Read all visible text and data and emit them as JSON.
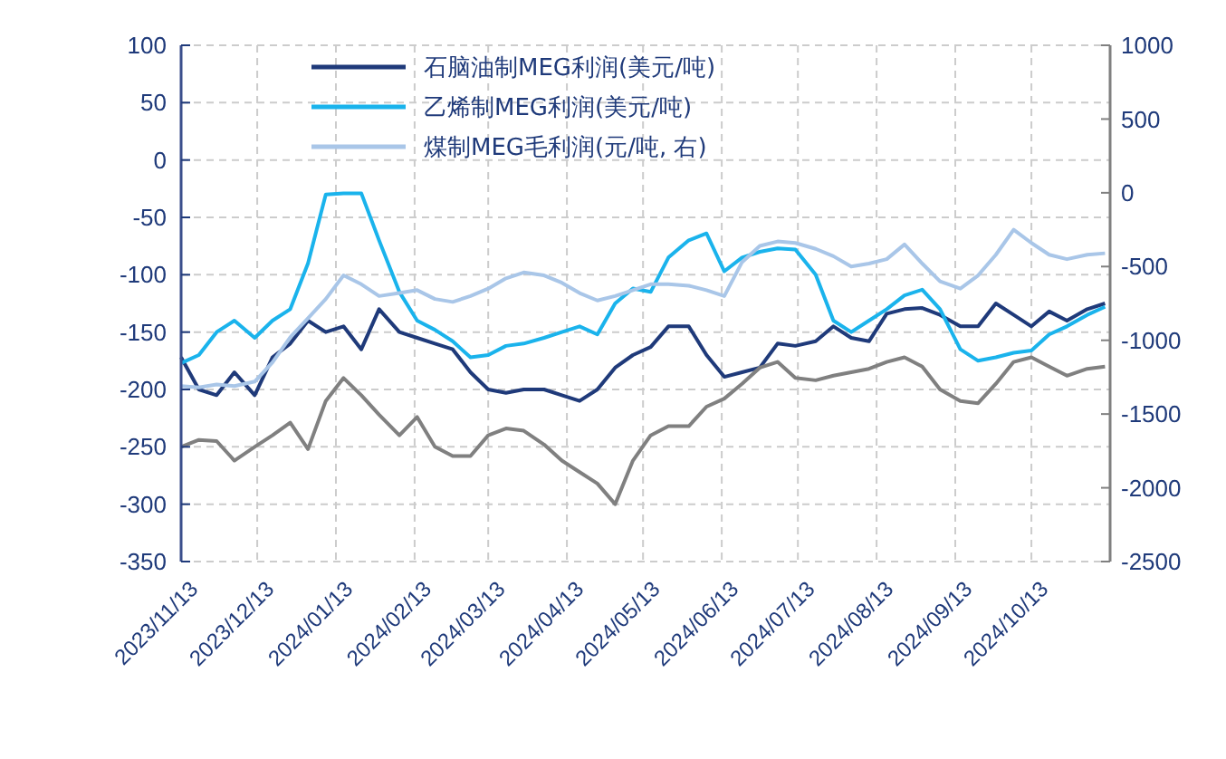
{
  "chart_data": {
    "type": "line",
    "x": [
      "2023-11-13",
      "2023-11-20",
      "2023-11-27",
      "2023-12-04",
      "2023-12-12",
      "2023-12-19",
      "2023-12-26",
      "2024-01-02",
      "2024-01-09",
      "2024-01-16",
      "2024-01-23",
      "2024-01-30",
      "2024-02-07",
      "2024-02-14",
      "2024-02-21",
      "2024-02-28",
      "2024-03-06",
      "2024-03-13",
      "2024-03-20",
      "2024-03-27",
      "2024-04-04",
      "2024-04-11",
      "2024-04-18",
      "2024-04-25",
      "2024-05-02",
      "2024-05-09",
      "2024-05-16",
      "2024-05-23",
      "2024-05-31",
      "2024-06-07",
      "2024-06-14",
      "2024-06-21",
      "2024-06-28",
      "2024-07-05",
      "2024-07-12",
      "2024-07-20",
      "2024-07-27",
      "2024-08-03",
      "2024-08-10",
      "2024-08-17",
      "2024-08-24",
      "2024-08-31",
      "2024-09-07",
      "2024-09-15",
      "2024-09-22",
      "2024-09-29",
      "2024-10-06",
      "2024-10-13",
      "2024-10-20",
      "2024-10-27",
      "2024-11-04",
      "2024-11-11"
    ],
    "series": [
      {
        "name": "石脑油制MEG利润(美元/吨)",
        "color": "#1f3a7a",
        "values": [
          -172,
          -200,
          -205,
          -185,
          -205,
          -172,
          -160,
          -140,
          -150,
          -145,
          -165,
          -130,
          -150,
          -155,
          -160,
          -165,
          -185,
          -200,
          -203,
          -200,
          -200,
          -205,
          -210,
          -200,
          -181,
          -170,
          -163,
          -145,
          -145,
          -170,
          -189,
          -185,
          -181,
          -160,
          -162,
          -158,
          -145,
          -155,
          -158,
          -134,
          -130,
          -129,
          -135,
          -145,
          -145,
          -125,
          -135,
          -145,
          -132,
          -140,
          -130,
          -125
        ]
      },
      {
        "name": "乙烯制MEG利润(美元/吨)",
        "color": "#1ab3ec",
        "values": [
          -177,
          -170,
          -150,
          -140,
          -155,
          -140,
          -130,
          -90,
          -30,
          -29,
          -29,
          -70,
          -115,
          -140,
          -148,
          -158,
          -172,
          -170,
          -162,
          -160,
          -155,
          -150,
          -145,
          -152,
          -125,
          -112,
          -115,
          -85,
          -70,
          -64,
          -97,
          -85,
          -80,
          -77,
          -78,
          -100,
          -140,
          -150,
          -140,
          -130,
          -118,
          -113,
          -130,
          -165,
          -175,
          -172,
          -168,
          -166,
          -152,
          -145,
          -135,
          -128
        ]
      },
      {
        "name": "煤制MEG毛利润(元/吨, 右)",
        "color": "#a9c6e8",
        "axis": "y2",
        "values": [
          -1310,
          -1320,
          -1300,
          -1310,
          -1280,
          -1150,
          -980,
          -850,
          -720,
          -560,
          -620,
          -700,
          -680,
          -660,
          -720,
          -740,
          -700,
          -650,
          -580,
          -540,
          -560,
          -610,
          -680,
          -730,
          -700,
          -660,
          -620,
          -620,
          -630,
          -660,
          -700,
          -470,
          -360,
          -330,
          -340,
          -380,
          -430,
          -500,
          -480,
          -450,
          -350,
          -480,
          -600,
          -650,
          -560,
          -420,
          -250,
          -340,
          -420,
          -450,
          -420,
          -410
        ]
      },
      {
        "color": "#808080",
        "values": [
          -250,
          -244,
          -245,
          -262,
          -250,
          -240,
          -229,
          -252,
          -210,
          -190,
          -205,
          -222,
          -240,
          -224,
          -250,
          -258,
          -258,
          -240,
          -234,
          -236,
          -248,
          -262,
          -272,
          -282,
          -300,
          -262,
          -240,
          -232,
          -232,
          -215,
          -208,
          -195,
          -181,
          -176,
          -190,
          -192,
          -188,
          -185,
          -182,
          -176,
          -172,
          -180,
          -200,
          -210,
          -212,
          -195,
          -176,
          -172,
          -180,
          -188,
          -182,
          -180
        ]
      }
    ],
    "xlim": [
      "2023-11-13",
      "2024-11-13"
    ],
    "xticks": [
      {
        "value": "2023-11-13",
        "label": "2023/11/13"
      },
      {
        "value": "2023-12-13",
        "label": "2023/12/13"
      },
      {
        "value": "2024-01-13",
        "label": "2024/01/13"
      },
      {
        "value": "2024-02-13",
        "label": "2024/02/13"
      },
      {
        "value": "2024-03-13",
        "label": "2024/03/13"
      },
      {
        "value": "2024-04-13",
        "label": "2024/04/13"
      },
      {
        "value": "2024-05-13",
        "label": "2024/05/13"
      },
      {
        "value": "2024-06-13",
        "label": "2024/06/13"
      },
      {
        "value": "2024-07-13",
        "label": "2024/07/13"
      },
      {
        "value": "2024-08-13",
        "label": "2024/08/13"
      },
      {
        "value": "2024-09-13",
        "label": "2024/09/13"
      },
      {
        "value": "2024-10-13",
        "label": "2024/10/13"
      }
    ],
    "ylim": [
      -350,
      100
    ],
    "yticks": [
      -350,
      -300,
      -250,
      -200,
      -150,
      -100,
      -50,
      0,
      50,
      100
    ],
    "y2lim": [
      -2500,
      1000
    ],
    "y2ticks": [
      -2500,
      -2000,
      -1500,
      -1000,
      -500,
      0,
      500,
      1000
    ],
    "grid": true,
    "legend": "top",
    "marker": "none",
    "line_style": "solid"
  }
}
